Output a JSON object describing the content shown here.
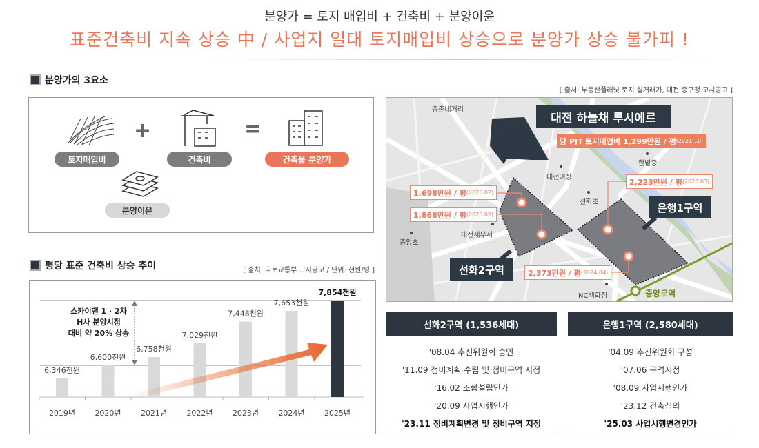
{
  "header": {
    "formula": "분양가 = 토지 매입비 + 건축비 + 분양이윤",
    "headline": "표준건축비 지속 상승 中 / 사업지 일대 토지매입비 상승으로 분양가 상승 불가피 !"
  },
  "elements": {
    "title": "분양가의 3요소",
    "land": "토지매입비",
    "construction": "건축비",
    "result": "건축물 분양가",
    "profit": "분양이윤",
    "plus": "+",
    "equals": "="
  },
  "map": {
    "source": "[ 출처: 부동산플래닛 토지 실거래가, 대전 중구청 고시공고 ]",
    "project": "대전 하늘채 루시에르",
    "project_price": "당 PJT 토지매입비 1,299만원 / 평",
    "project_date": "(2021.10)",
    "places": [
      "중촌네거리",
      "한밭중",
      "대전여상",
      "선화초",
      "대전세무서",
      "중앙초",
      "NC백화점"
    ],
    "station": "중앙로역",
    "zone_a": "선화2구역",
    "zone_b": "은행1구역",
    "prices": [
      {
        "v": "1,698만원 / 평",
        "d": "(2025.02)"
      },
      {
        "v": "1,868만원 / 평",
        "d": "(2025.02)"
      },
      {
        "v": "2,223만원 / 평",
        "d": "(2023.03)"
      },
      {
        "v": "2,373만원 / 평",
        "d": "(2024.04)"
      }
    ],
    "colors": {
      "accent": "#e8775a",
      "dark": "#2d3a45",
      "subway": "#7a9a2a"
    }
  },
  "chart": {
    "title": "평당 표준 건축비 상승 추이",
    "source": "[ 출처: 국토교통부 고시공고 / 단위: 천원/평 ]",
    "annotation": [
      "스카이앤 1 · 2차",
      "H사 분양시점",
      "대비 약 20% 상승"
    ]
  },
  "chart_data": {
    "type": "bar",
    "categories": [
      "2019년",
      "2020년",
      "2021년",
      "2022년",
      "2023년",
      "2024년",
      "2025년"
    ],
    "values": [
      6346,
      6600,
      6758,
      7029,
      7448,
      7653,
      7854
    ],
    "labels": [
      "6,346천원",
      "6,600천원",
      "6,758천원",
      "7,029천원",
      "7,448천원",
      "7,653천원",
      "7,854천원"
    ],
    "unit": "천원/평",
    "reference_lines": [
      6600,
      7854
    ],
    "colors": {
      "bar": "#d9d9d9",
      "highlight": "#2d3640",
      "arrow": "#e8652a"
    }
  },
  "districts": [
    {
      "title": "선화2구역 (1,536세대)",
      "items": [
        "'08.04 추진위원회 승인",
        "'11.09 정비계획 수립 및 정비구역 지정",
        "'16.02 조합설립인가",
        "'20.09 사업시행인가",
        "'23.11 정비계획변경 및 정비구역 지정"
      ]
    },
    {
      "title": "은행1구역 (2,580세대)",
      "items": [
        "'04.09 추진위원회 구성",
        "'07.06 구역지정",
        "'08.09 사업시행인가",
        "'23.12 건축심의",
        "'25.03 사업시행변경인가"
      ]
    }
  ]
}
